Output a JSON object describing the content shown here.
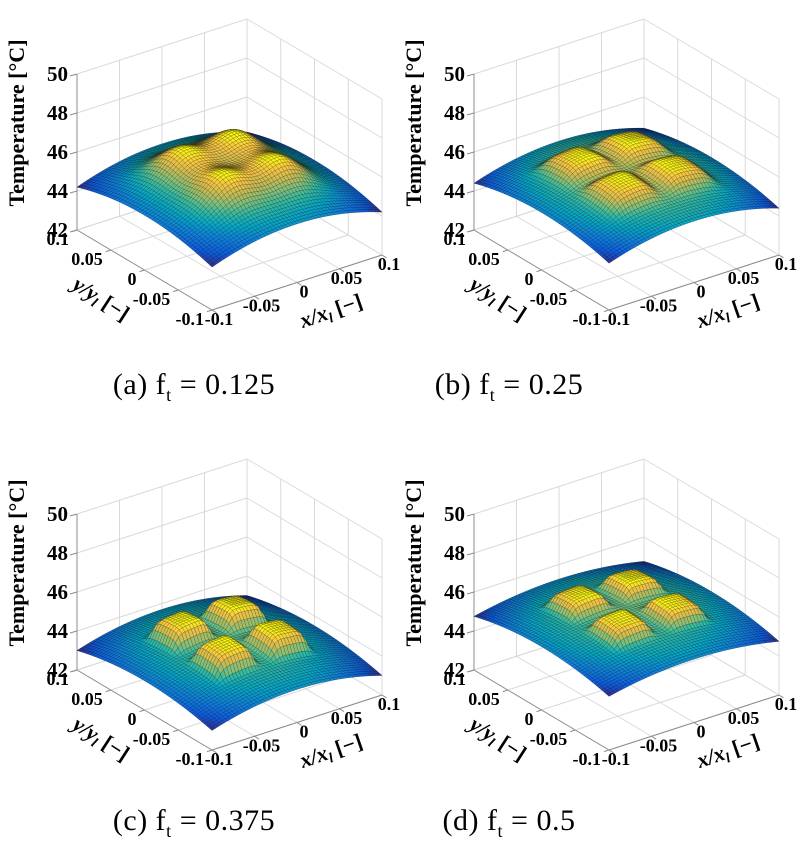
{
  "figure_description": "Four 3D surface plots of simulated wall temperature distribution over normalized x/y coordinates for four heating time fractions",
  "chart_data": {
    "type": "surface",
    "subplot_grid": {
      "rows": 2,
      "cols": 2
    },
    "axes": {
      "x": {
        "label": {
          "pre": "x/x",
          "sub": "l",
          "post": " [−]"
        },
        "ticks": [
          -0.1,
          -0.05,
          0,
          0.05,
          0.1
        ],
        "tick_labels": [
          "-0.1",
          "-0.05",
          "0",
          "0.05",
          "0.1"
        ],
        "range": [
          -0.1,
          0.1
        ]
      },
      "y": {
        "label": {
          "pre": "y/y",
          "sub": "l",
          "post": " [−]"
        },
        "ticks": [
          -0.1,
          -0.05,
          0,
          0.05,
          0.1
        ],
        "tick_labels": [
          "-0.1",
          "-0.05",
          "0",
          "0.05",
          "0.1"
        ],
        "range": [
          -0.1,
          0.1
        ]
      },
      "z": {
        "label": {
          "pre": "Temperature [°C]",
          "sub": "",
          "post": ""
        },
        "ticks": [
          42,
          44,
          46,
          48,
          50
        ],
        "tick_labels": [
          "42",
          "44",
          "46",
          "48",
          "50"
        ],
        "range": [
          42,
          50
        ]
      }
    },
    "colors": {
      "grid": "#d9d9d9",
      "axis": "#8c8c8c",
      "text": "#000000",
      "background": "#ffffff"
    },
    "colormap_parula": [
      "#352a87",
      "#0c5cdd",
      "#0f7fdb",
      "#06a7c6",
      "#30b8a3",
      "#7fbf7b",
      "#c4bb55",
      "#f6c343",
      "#f9fb0e"
    ],
    "mesh_divisions": 54,
    "panels": [
      {
        "id": "a",
        "ft": 0.125,
        "caption": {
          "pre": "(a) f",
          "sub": "t",
          "post": " = 0.125"
        },
        "surface": {
          "center_temp": 45.6,
          "curvature_x": 0.8,
          "curvature_y": 0.6,
          "bump_shape": "round",
          "bump_power": 2,
          "bump_amp": 1.15,
          "bump_width": 0.022,
          "bump_offset": 0.032,
          "peak_temp_approx": 46.7,
          "corner_temp_approx": 44.2
        }
      },
      {
        "id": "b",
        "ft": 0.25,
        "caption": {
          "pre": "(b) f",
          "sub": "t",
          "post": " = 0.25"
        },
        "surface": {
          "center_temp": 45.7,
          "curvature_x": 0.75,
          "curvature_y": 0.55,
          "bump_shape": "square",
          "bump_power": 4,
          "bump_amp": 0.75,
          "bump_width": 0.027,
          "bump_offset": 0.033,
          "peak_temp_approx": 46.3,
          "corner_temp_approx": 44.4
        }
      },
      {
        "id": "c",
        "ft": 0.375,
        "caption": {
          "pre": "(c) f",
          "sub": "t",
          "post": " = 0.375"
        },
        "surface": {
          "center_temp": 44.2,
          "curvature_x": 0.7,
          "curvature_y": 0.5,
          "bump_shape": "square",
          "bump_power": 6,
          "bump_amp": 1.0,
          "bump_width": 0.022,
          "bump_offset": 0.032,
          "peak_temp_approx": 45.1,
          "corner_temp_approx": 43.0
        }
      },
      {
        "id": "d",
        "ft": 0.5,
        "caption": {
          "pre": "(d) f",
          "sub": "t",
          "post": " = 0.5"
        },
        "surface": {
          "center_temp": 45.75,
          "curvature_x": 0.5,
          "curvature_y": 0.5,
          "bump_shape": "square",
          "bump_power": 6,
          "bump_amp": 0.75,
          "bump_width": 0.022,
          "bump_offset": 0.032,
          "peak_temp_approx": 46.35,
          "corner_temp_approx": 44.75
        }
      }
    ]
  }
}
